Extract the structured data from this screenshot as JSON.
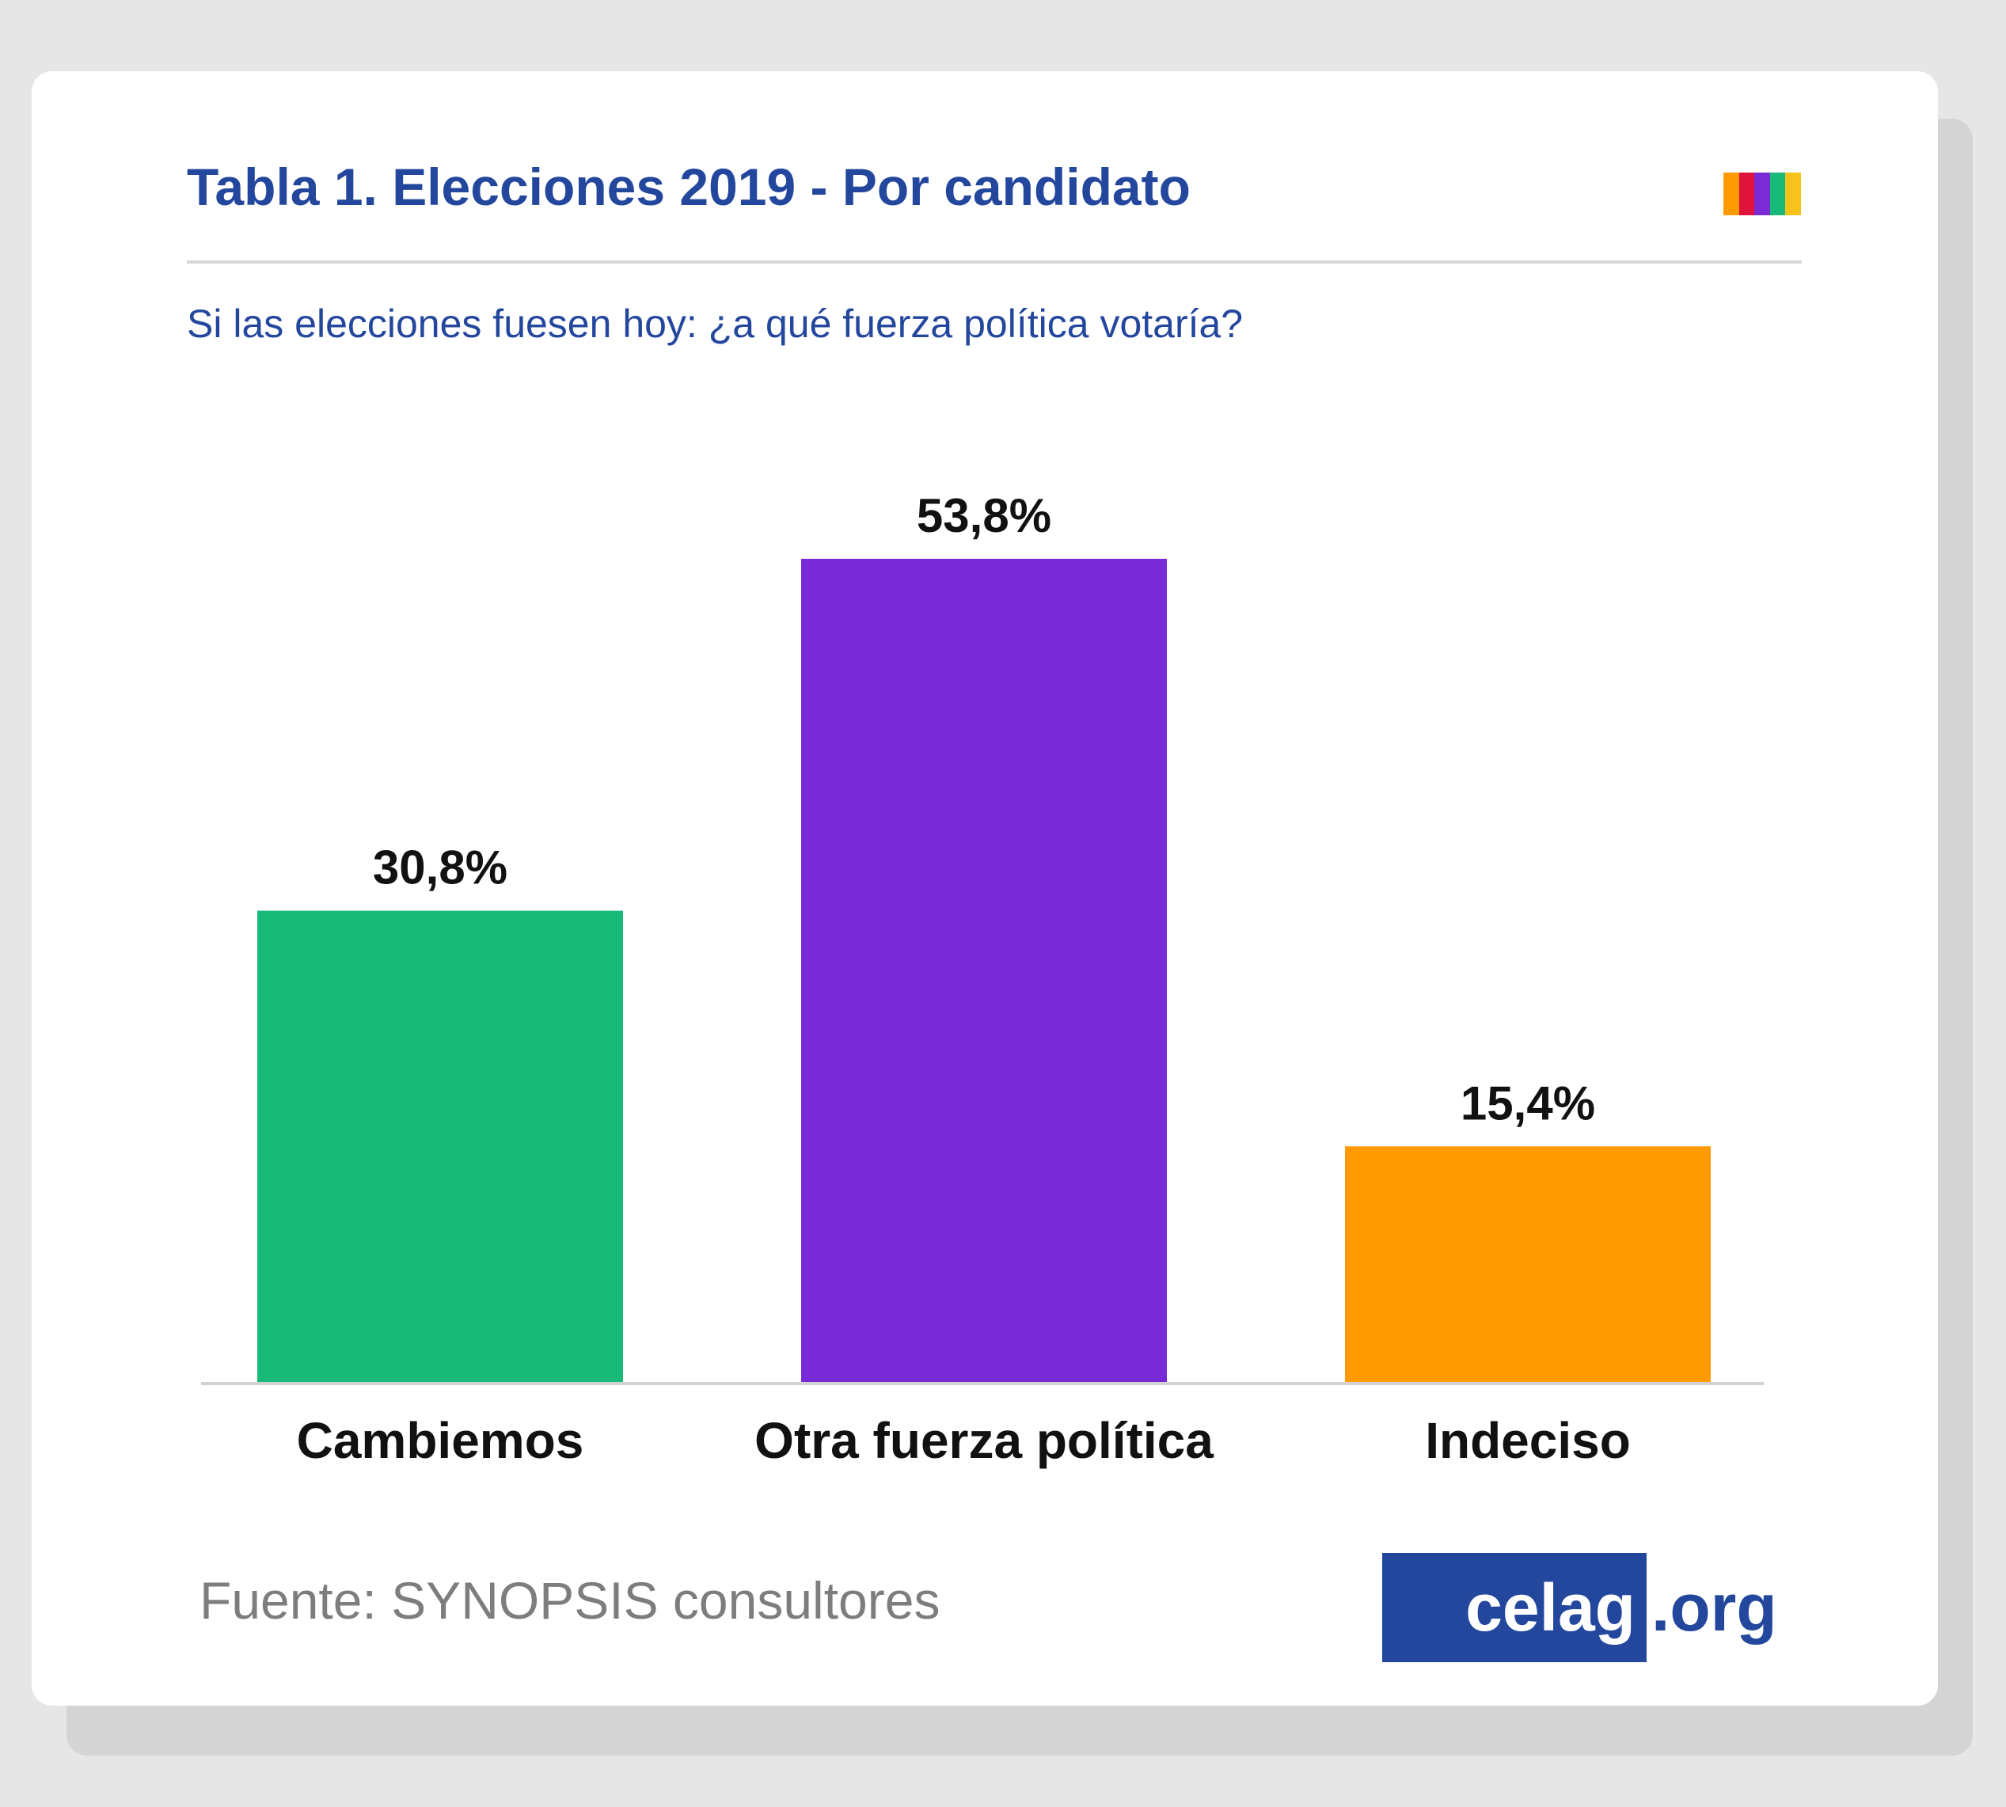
{
  "header": {
    "title": "Tabla 1. Elecciones 2019 - Por candidato",
    "stripe_colors": [
      "#ff9b00",
      "#e0133c",
      "#7b2bd6",
      "#19b97a",
      "#f6c31c"
    ]
  },
  "subtitle": "Si las elecciones fuesen hoy: ¿a qué fuerza política votaría?",
  "footer": {
    "source": "Fuente: SYNOPSIS consultores",
    "logo_main": "celag",
    "logo_ext": ".org"
  },
  "chart_data": {
    "type": "bar",
    "title": "Tabla 1. Elecciones 2019 - Por candidato",
    "subtitle": "Si las elecciones fuesen hoy: ¿a qué fuerza política votaría?",
    "categories": [
      "Cambiemos",
      "Otra fuerza política",
      "Indeciso"
    ],
    "values": [
      30.8,
      53.8,
      15.4
    ],
    "value_labels": [
      "30,8%",
      "53,8%",
      "15,4%"
    ],
    "colors": [
      "#19b97a",
      "#772ad5",
      "#ff9a00"
    ],
    "xlabel": "",
    "ylabel": "",
    "ylim": [
      0,
      53.8
    ],
    "grid": false,
    "legend": "none"
  }
}
